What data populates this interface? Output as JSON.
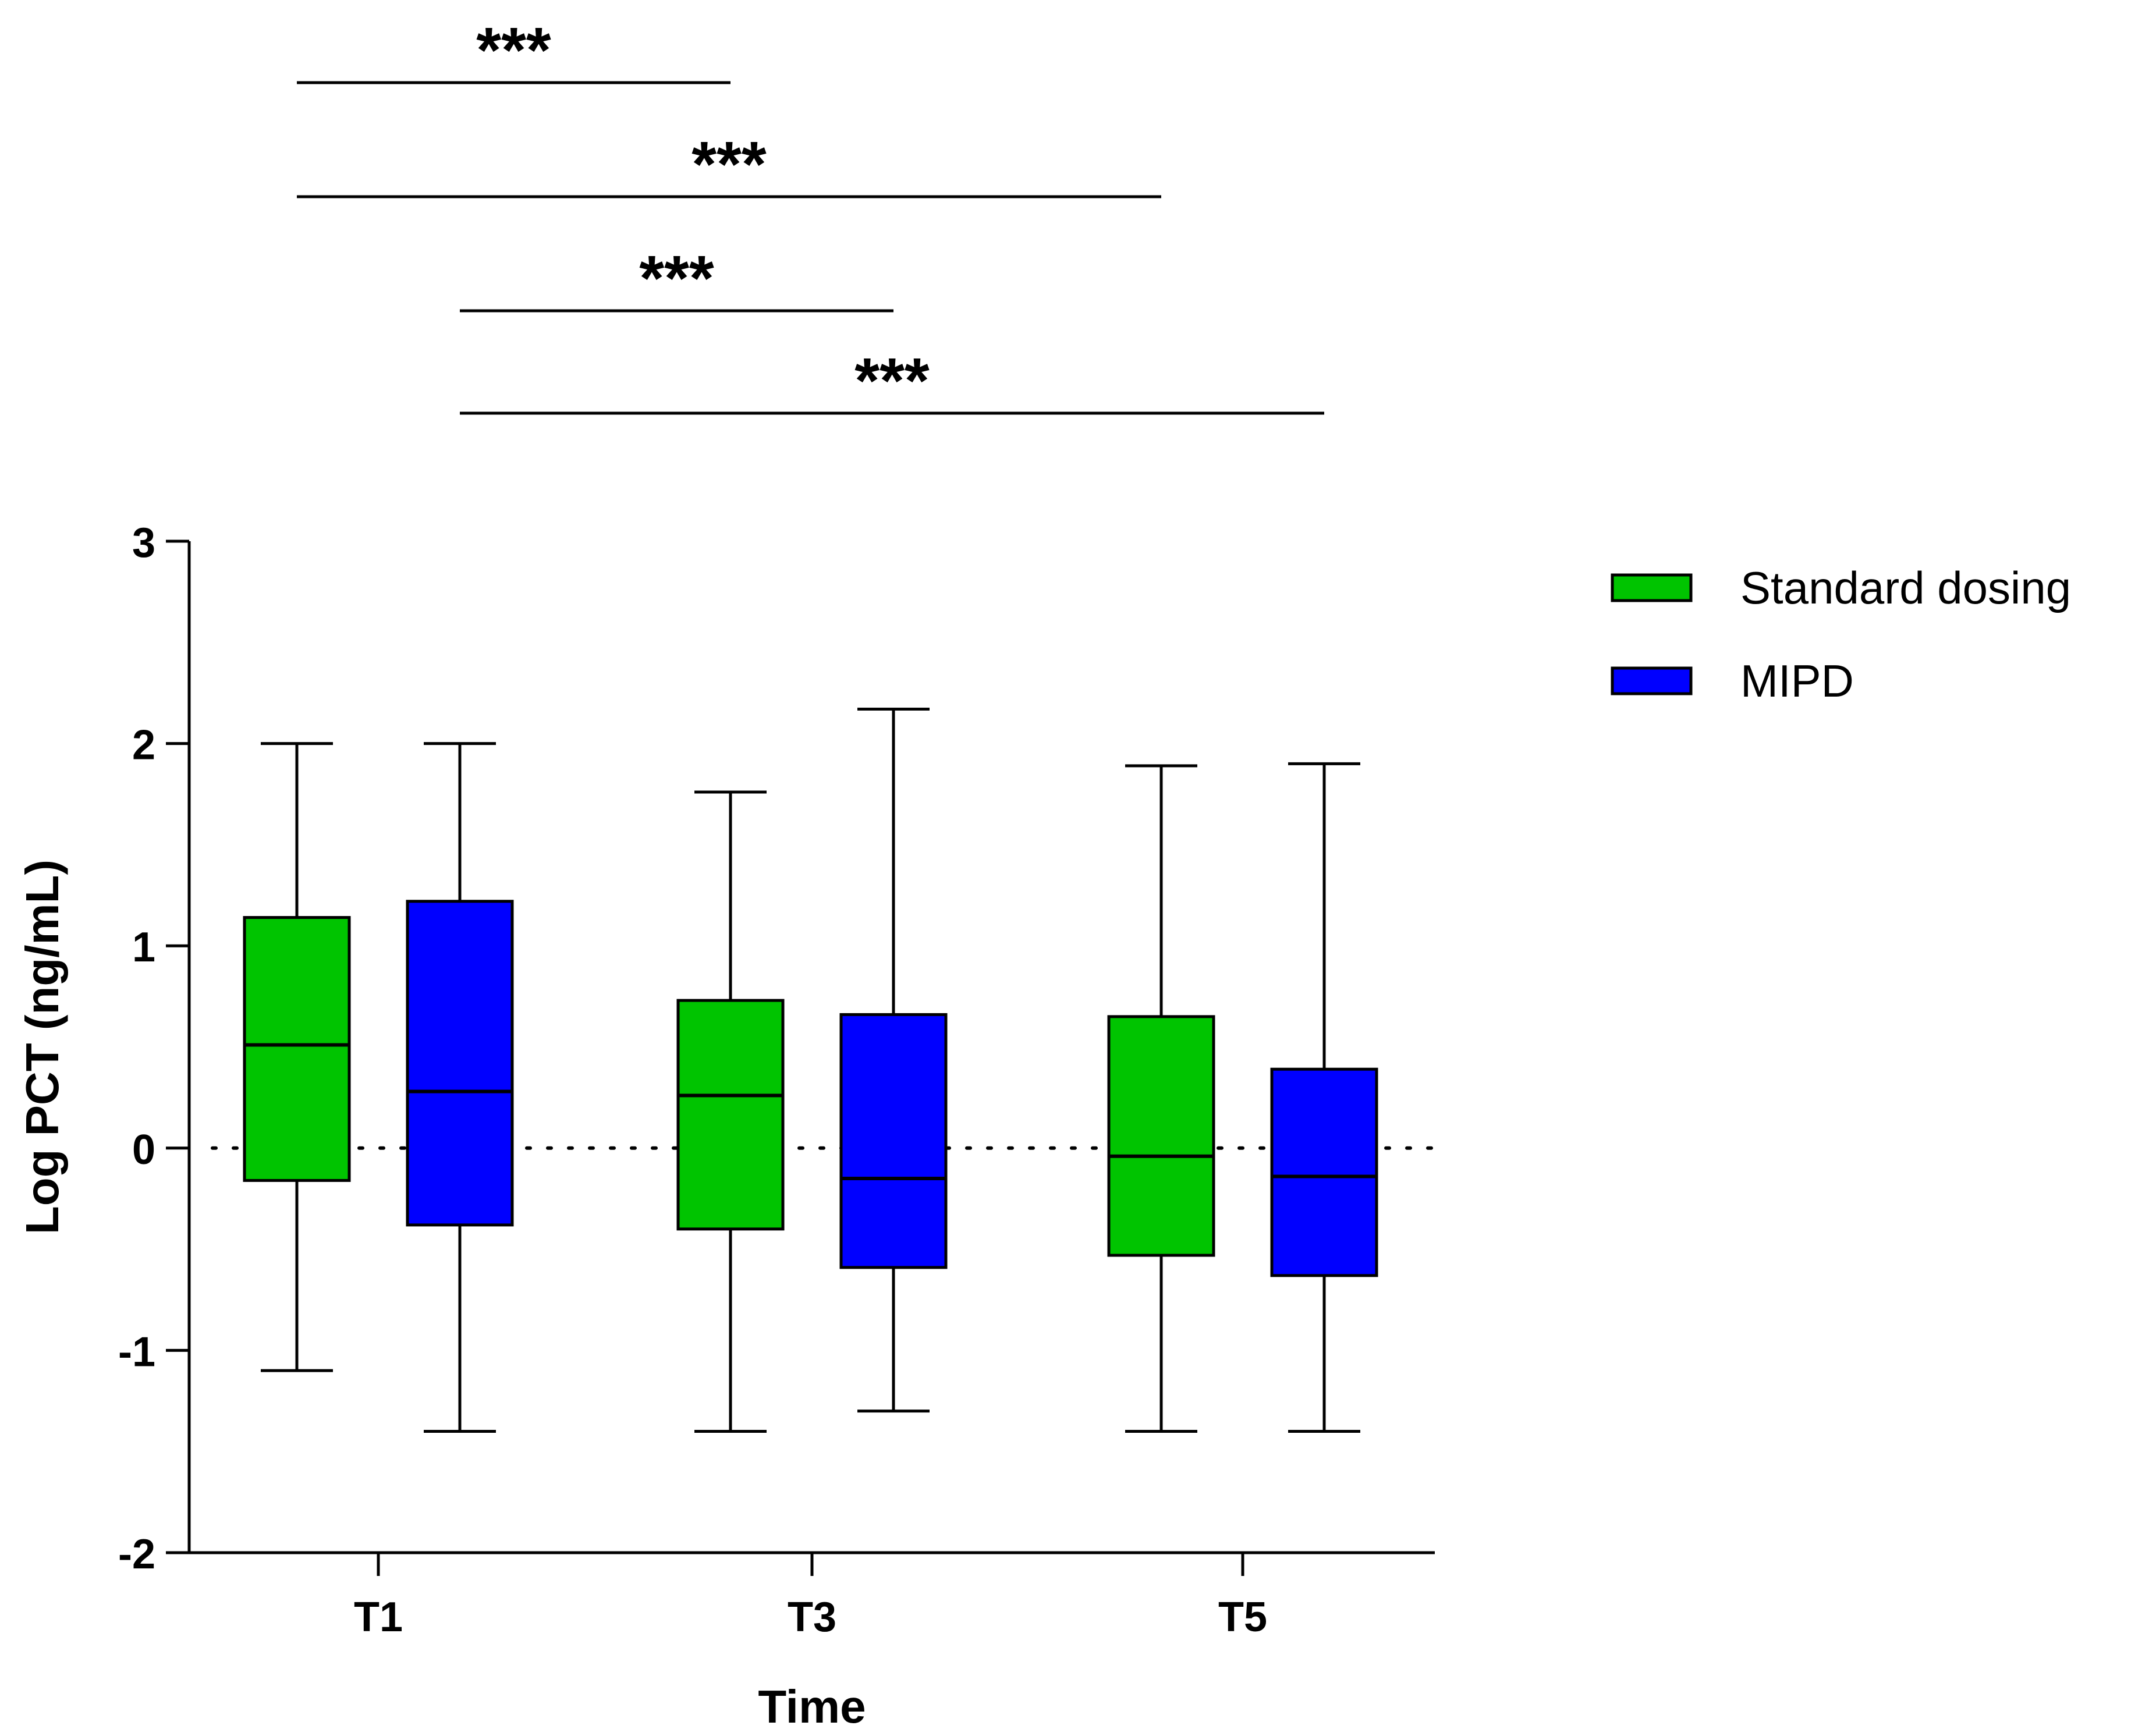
{
  "chart_data": {
    "type": "box",
    "xlabel": "Time",
    "ylabel": "Log PCT (ng/mL)",
    "ylim": [
      -2,
      3
    ],
    "yticks": [
      "3",
      "2",
      "1",
      "0",
      "-1",
      "-2"
    ],
    "ytick_values": [
      3,
      2,
      1,
      0,
      -1,
      -2
    ],
    "categories": [
      "T1",
      "T3",
      "T5"
    ],
    "reference_line": 0,
    "series": [
      {
        "name": "Standard dosing",
        "color": "#00c400",
        "boxes": [
          {
            "category": "T1",
            "min": -1.1,
            "q1": -0.16,
            "median": 0.51,
            "q3": 1.14,
            "max": 2.0
          },
          {
            "category": "T3",
            "min": -1.4,
            "q1": -0.4,
            "median": 0.26,
            "q3": 0.73,
            "max": 1.76
          },
          {
            "category": "T5",
            "min": -1.4,
            "q1": -0.53,
            "median": -0.04,
            "q3": 0.65,
            "max": 1.89
          }
        ]
      },
      {
        "name": "MIPD",
        "color": "#0000ff",
        "boxes": [
          {
            "category": "T1",
            "min": -1.4,
            "q1": -0.38,
            "median": 0.28,
            "q3": 1.22,
            "max": 2.0
          },
          {
            "category": "T3",
            "min": -1.3,
            "q1": -0.59,
            "median": -0.15,
            "q3": 0.66,
            "max": 2.17
          },
          {
            "category": "T5",
            "min": -1.4,
            "q1": -0.63,
            "median": -0.14,
            "q3": 0.39,
            "max": 1.9
          }
        ]
      }
    ],
    "significance": [
      {
        "label": "***",
        "from": "T1 Standard dosing",
        "to": "T3 Standard dosing"
      },
      {
        "label": "***",
        "from": "T1 Standard dosing",
        "to": "T5 Standard dosing"
      },
      {
        "label": "***",
        "from": "T1 MIPD",
        "to": "T3 MIPD"
      },
      {
        "label": "***",
        "from": "T1 MIPD",
        "to": "T5 MIPD"
      }
    ]
  }
}
